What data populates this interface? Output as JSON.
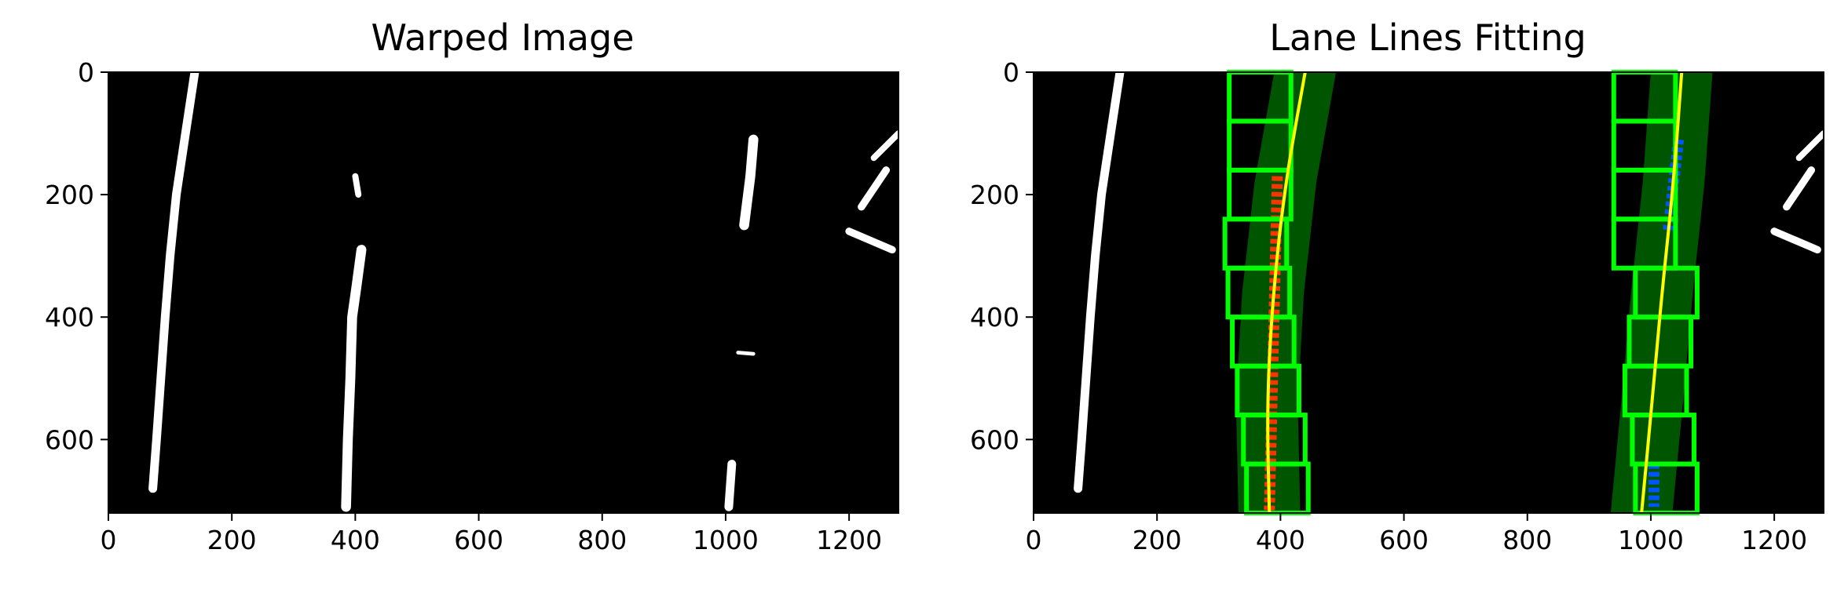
{
  "chart_data": [
    {
      "type": "image",
      "title": "Warped Image",
      "xlim": [
        0,
        1280
      ],
      "ylim": [
        720,
        0
      ],
      "xticks": [
        0,
        200,
        400,
        600,
        800,
        1000,
        1200
      ],
      "yticks": [
        0,
        200,
        400,
        600
      ],
      "background": "#000000",
      "pixel_color": "#ffffff",
      "lane_pixels": [
        {
          "name": "left-line",
          "points": [
            [
              140,
              0
            ],
            [
              125,
              100
            ],
            [
              110,
              200
            ],
            [
              100,
              300
            ],
            [
              92,
              400
            ],
            [
              85,
              500
            ],
            [
              78,
              600
            ],
            [
              72,
              680
            ]
          ],
          "width": 14
        },
        {
          "name": "right-line",
          "points": [
            [
              410,
              290
            ],
            [
              402,
              350
            ],
            [
              395,
              400
            ],
            [
              392,
              500
            ],
            [
              388,
              600
            ],
            [
              385,
              710
            ]
          ],
          "width": 16
        },
        {
          "name": "right-line-top",
          "points": [
            [
              400,
              170
            ],
            [
              405,
              200
            ]
          ],
          "width": 10
        },
        {
          "name": "right-dash-top",
          "points": [
            [
              1045,
              110
            ],
            [
              1040,
              170
            ],
            [
              1030,
              250
            ]
          ],
          "width": 16
        },
        {
          "name": "right-dash-bottom",
          "points": [
            [
              1010,
              640
            ],
            [
              1005,
              710
            ]
          ],
          "width": 14
        },
        {
          "name": "edge-noise-1",
          "points": [
            [
              1280,
              100
            ],
            [
              1240,
              140
            ]
          ],
          "width": 10
        },
        {
          "name": "edge-noise-2",
          "points": [
            [
              1260,
              160
            ],
            [
              1220,
              220
            ]
          ],
          "width": 12
        },
        {
          "name": "edge-noise-3",
          "points": [
            [
              1200,
              260
            ],
            [
              1270,
              290
            ]
          ],
          "width": 12
        },
        {
          "name": "speck-1",
          "points": [
            [
              1020,
              458
            ],
            [
              1045,
              460
            ]
          ],
          "width": 6
        }
      ]
    },
    {
      "type": "image",
      "title": "Lane Lines Fitting",
      "xlim": [
        0,
        1280
      ],
      "ylim": [
        720,
        0
      ],
      "xticks": [
        0,
        200,
        400,
        600,
        800,
        1000,
        1200
      ],
      "yticks": [
        0,
        200,
        400,
        600
      ],
      "background": "#000000",
      "window_color": "#00ff00",
      "search_area_color": "#005500",
      "fit_color": "#ffff00",
      "left_pixels_color": "#ff3300",
      "right_pixels_color": "#0055ff",
      "left_windows_xcenter": [
        395,
        390,
        380,
        372,
        365,
        360,
        367,
        367,
        367
      ],
      "right_windows_xcenter": [
        1025,
        1020,
        1008,
        1015,
        1025,
        990,
        990,
        990,
        990
      ],
      "window_half_width": 50,
      "left_fit": {
        "y": [
          0,
          180,
          360,
          540,
          720
        ],
        "x": [
          440,
          408,
          388,
          378,
          382
        ]
      },
      "right_fit": {
        "y": [
          0,
          180,
          360,
          540,
          720
        ],
        "x": [
          1050,
          1037,
          1018,
          1002,
          985
        ]
      }
    }
  ]
}
